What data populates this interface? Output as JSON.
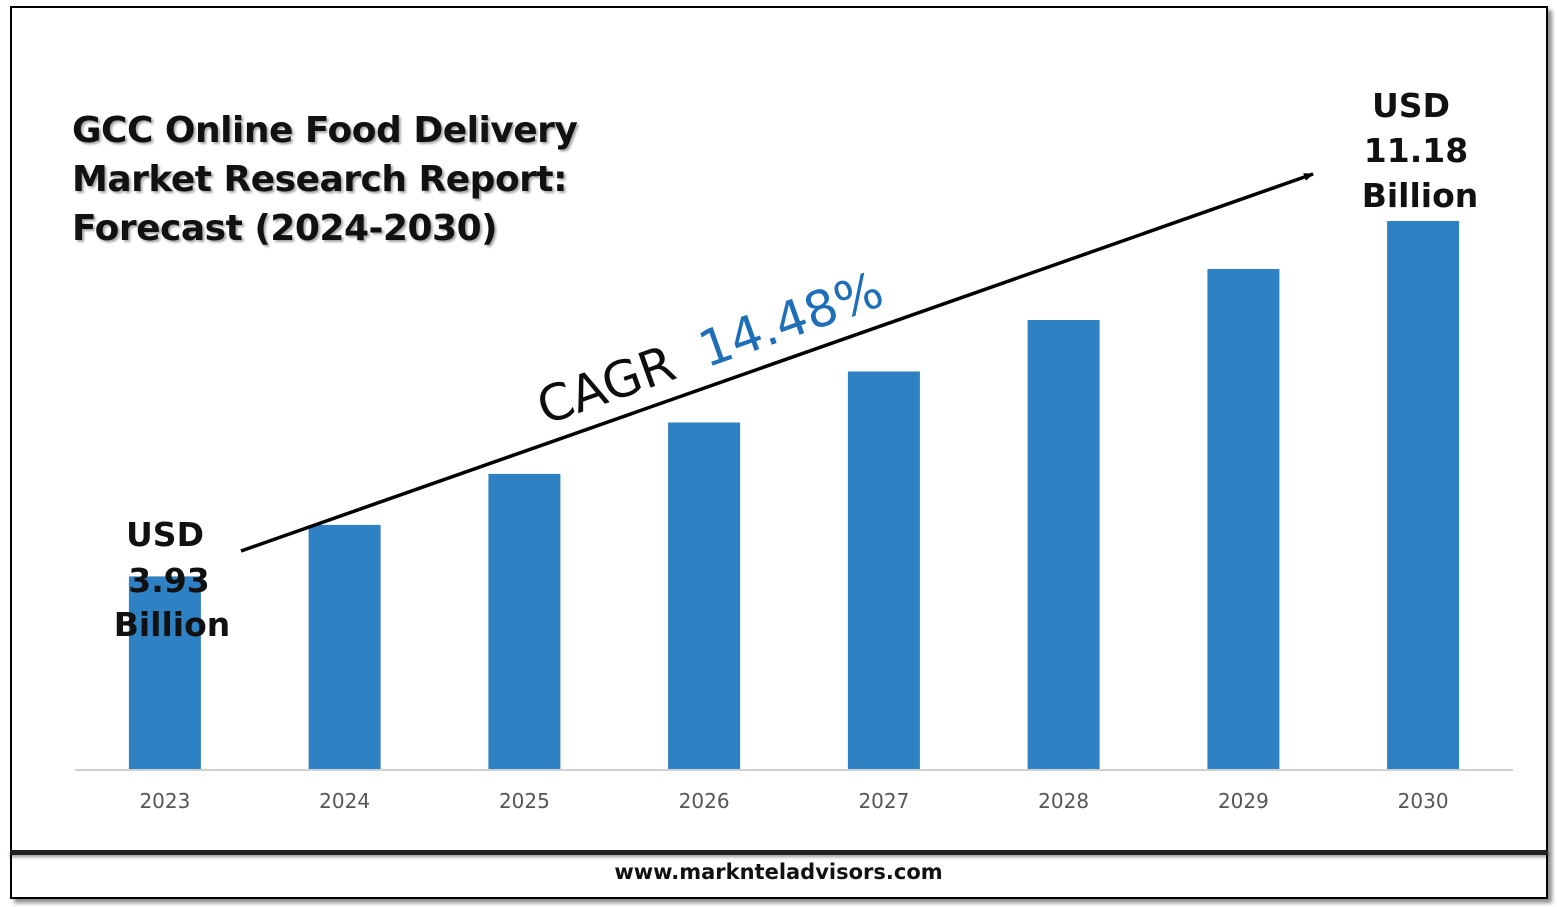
{
  "chart_data": {
    "type": "bar",
    "title": [
      "GCC Online Food Delivery",
      "Market Research Report:",
      "Forecast (2024-2030)"
    ],
    "categories": [
      "2023",
      "2024",
      "2025",
      "2026",
      "2027",
      "2028",
      "2029",
      "2030"
    ],
    "values": [
      3.93,
      4.98,
      6.02,
      7.07,
      8.11,
      9.16,
      10.2,
      11.18
    ],
    "unit": "USD Billion",
    "bar_color": "#2e81c2",
    "ylim": [
      0,
      11.18
    ],
    "grid": false,
    "annotations": {
      "start_value": [
        "USD",
        "3.93",
        "Billion"
      ],
      "end_value": [
        "USD",
        "11.18",
        "Billion"
      ],
      "cagr_label": "CAGR",
      "cagr_value": "14.48%",
      "cagr_color": "#1f6fb8"
    }
  },
  "footer": {
    "url": "www.marknteladvisors.com"
  }
}
